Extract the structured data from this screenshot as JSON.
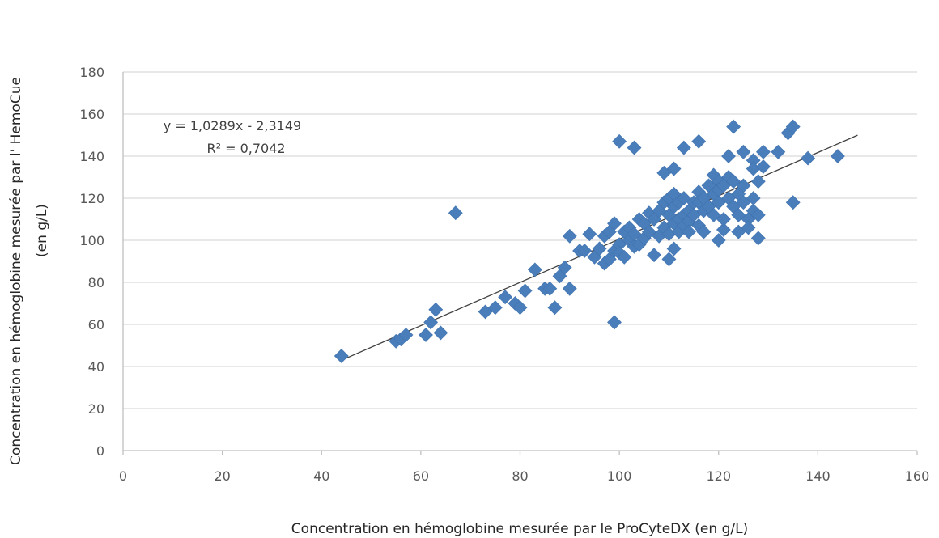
{
  "chart_data": {
    "type": "scatter",
    "xlabel": "Concentration en hémoglobine mesurée par le ProCyteDX (en g/L)",
    "ylabel_line1": "Concentration en hémoglobine mesurée par l'     HemoCue",
    "ylabel_line2": "(en g/L)",
    "xlim": [
      0,
      160
    ],
    "ylim": [
      0,
      180
    ],
    "xticks": [
      0,
      20,
      40,
      60,
      80,
      100,
      120,
      140,
      160
    ],
    "yticks": [
      0,
      20,
      40,
      60,
      80,
      100,
      120,
      140,
      160,
      180
    ],
    "grid": "horizontal",
    "legend": "none",
    "marker": "diamond",
    "point_color": "#4A7EBB",
    "trendline": {
      "equation": "y = 1,0289x - 2,3149",
      "r_squared": "R² = 0,7042",
      "slope": 1.0289,
      "intercept": -2.3149,
      "x_range": [
        44,
        148
      ],
      "color": "#404040"
    },
    "points": [
      [
        44,
        45
      ],
      [
        55,
        52
      ],
      [
        56,
        53
      ],
      [
        57,
        55
      ],
      [
        61,
        55
      ],
      [
        62,
        61
      ],
      [
        63,
        67
      ],
      [
        64,
        56
      ],
      [
        67,
        113
      ],
      [
        73,
        66
      ],
      [
        75,
        68
      ],
      [
        77,
        73
      ],
      [
        79,
        70
      ],
      [
        80,
        68
      ],
      [
        81,
        76
      ],
      [
        83,
        86
      ],
      [
        85,
        77
      ],
      [
        86,
        77
      ],
      [
        87,
        68
      ],
      [
        88,
        83
      ],
      [
        89,
        87
      ],
      [
        90,
        102
      ],
      [
        90,
        77
      ],
      [
        92,
        95
      ],
      [
        93,
        95
      ],
      [
        94,
        103
      ],
      [
        95,
        92
      ],
      [
        96,
        96
      ],
      [
        97,
        89
      ],
      [
        97,
        102
      ],
      [
        98,
        91
      ],
      [
        98,
        104
      ],
      [
        99,
        108
      ],
      [
        99,
        61
      ],
      [
        99,
        95
      ],
      [
        100,
        147
      ],
      [
        100,
        98
      ],
      [
        100,
        94
      ],
      [
        101,
        104
      ],
      [
        101,
        92
      ],
      [
        102,
        100
      ],
      [
        102,
        106
      ],
      [
        103,
        144
      ],
      [
        103,
        97
      ],
      [
        103,
        103
      ],
      [
        104,
        98
      ],
      [
        104,
        110
      ],
      [
        105,
        108
      ],
      [
        105,
        101
      ],
      [
        106,
        113
      ],
      [
        106,
        104
      ],
      [
        107,
        93
      ],
      [
        107,
        110
      ],
      [
        108,
        102
      ],
      [
        108,
        114
      ],
      [
        109,
        132
      ],
      [
        109,
        106
      ],
      [
        109,
        118
      ],
      [
        110,
        91
      ],
      [
        110,
        103
      ],
      [
        110,
        112
      ],
      [
        110,
        120
      ],
      [
        111,
        134
      ],
      [
        111,
        96
      ],
      [
        111,
        108
      ],
      [
        111,
        116
      ],
      [
        111,
        122
      ],
      [
        112,
        110
      ],
      [
        112,
        104
      ],
      [
        112,
        118
      ],
      [
        113,
        144
      ],
      [
        113,
        112
      ],
      [
        113,
        107
      ],
      [
        113,
        120
      ],
      [
        114,
        114
      ],
      [
        114,
        109
      ],
      [
        114,
        104
      ],
      [
        115,
        118
      ],
      [
        115,
        112
      ],
      [
        116,
        147
      ],
      [
        116,
        123
      ],
      [
        116,
        107
      ],
      [
        116,
        118
      ],
      [
        117,
        114
      ],
      [
        117,
        120
      ],
      [
        117,
        104
      ],
      [
        118,
        126
      ],
      [
        118,
        116
      ],
      [
        119,
        131
      ],
      [
        119,
        122
      ],
      [
        119,
        112
      ],
      [
        120,
        100
      ],
      [
        120,
        128
      ],
      [
        120,
        118
      ],
      [
        120,
        124
      ],
      [
        121,
        105
      ],
      [
        121,
        110
      ],
      [
        121,
        126
      ],
      [
        122,
        140
      ],
      [
        122,
        120
      ],
      [
        122,
        130
      ],
      [
        123,
        154
      ],
      [
        123,
        128
      ],
      [
        123,
        116
      ],
      [
        124,
        112
      ],
      [
        124,
        122
      ],
      [
        124,
        104
      ],
      [
        125,
        142
      ],
      [
        125,
        126
      ],
      [
        125,
        118
      ],
      [
        126,
        110
      ],
      [
        126,
        106
      ],
      [
        127,
        138
      ],
      [
        127,
        134
      ],
      [
        127,
        114
      ],
      [
        127,
        120
      ],
      [
        128,
        112
      ],
      [
        128,
        101
      ],
      [
        128,
        128
      ],
      [
        129,
        135
      ],
      [
        129,
        142
      ],
      [
        132,
        142
      ],
      [
        134,
        151
      ],
      [
        135,
        154
      ],
      [
        135,
        118
      ],
      [
        138,
        139
      ],
      [
        144,
        140
      ]
    ]
  }
}
